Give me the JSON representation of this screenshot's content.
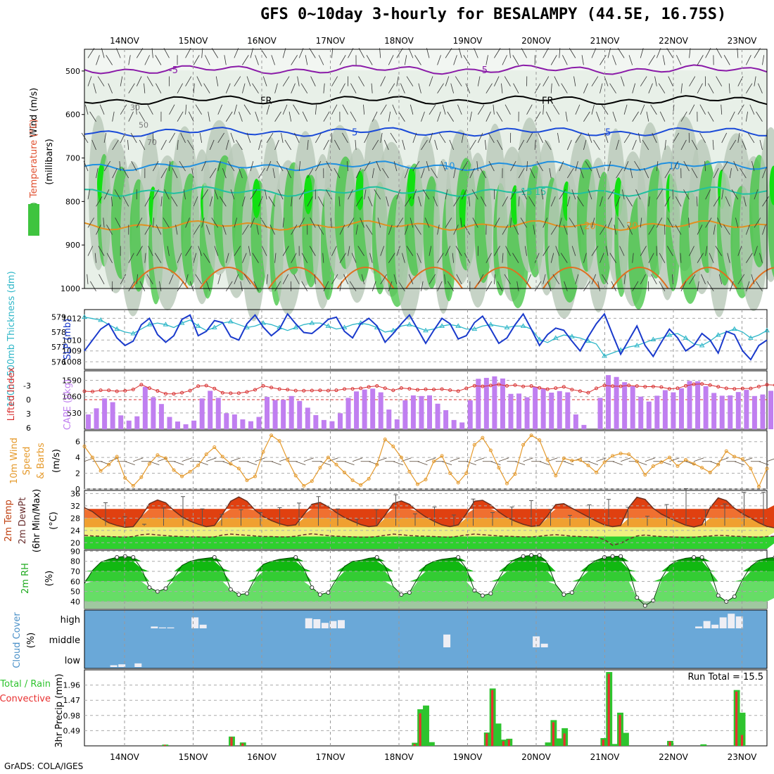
{
  "title": "GFS 0~10day 3-hourly for BESALAMPY (44.5E, 16.75S)",
  "credit": "GrADS: COLA/IGES",
  "dates": [
    "14NOV",
    "15NOV",
    "16NOV",
    "17NOV",
    "18NOV",
    "19NOV",
    "20NOV",
    "21NOV",
    "22NOV",
    "23NOV"
  ],
  "colors": {
    "rh_green": "#3fc43f",
    "rh_dark": "#1faa1f",
    "slp": "#1a3acc",
    "thick": "#2fb7c8",
    "cape": "#c07ff0",
    "li": "#d83030",
    "wind": "#e59a2c",
    "cloud_bg": "#6aa8d8",
    "precip_total": "#2ec42e",
    "precip_conv": "#e83030"
  },
  "chart_data": [
    {
      "panel": "upper_air",
      "type": "heatmap",
      "ylabel_parts": [
        "RH (%)",
        "Temperature (°C)",
        "Wind (m/s)"
      ],
      "yunit": "(millibars)",
      "yticks": [
        500,
        600,
        700,
        800,
        900,
        1000
      ],
      "ylim": [
        1000,
        450
      ],
      "isotherms": [
        {
          "label": "-5",
          "color": "#8a1aa8",
          "level": "490~505 mb"
        },
        {
          "label": "FR",
          "color": "#000000",
          "level": "565~575 mb"
        },
        {
          "label": "5",
          "color": "#1a4ad8",
          "level": "630~650 mb"
        },
        {
          "label": "10",
          "color": "#2090e0",
          "level": "705~730 mb"
        },
        {
          "label": "15",
          "color": "#20c0a0",
          "level": "765~790 mb"
        },
        {
          "label": "20",
          "color": "#e09020",
          "level": "840~870 mb"
        }
      ],
      "rh_labels": [
        "30",
        "50",
        "70"
      ]
    },
    {
      "panel": "slp_thickness",
      "type": "line",
      "left_label": "1000~500mb Thickness (dm)",
      "right_label": "SLP (mb)",
      "thick_ticks": [
        579,
        578,
        577,
        576
      ],
      "slp_ticks": [
        1012,
        1010,
        1009,
        1008
      ],
      "slp": [
        1009.0,
        1010.0,
        1011.0,
        1011.5,
        1010.2,
        1009.5,
        1009.9,
        1011.4,
        1012.0,
        1010.5,
        1009.8,
        1010.4,
        1011.9,
        1012.3,
        1010.4,
        1010.8,
        1011.8,
        1011.6,
        1010.3,
        1010.0,
        1011.5,
        1012.3,
        1011.2,
        1010.4,
        1011.0,
        1012.4,
        1011.5,
        1010.7,
        1010.6,
        1011.2,
        1011.9,
        1012.1,
        1010.8,
        1010.2,
        1011.5,
        1012.0,
        1011.3,
        1009.8,
        1010.6,
        1011.5,
        1012.3,
        1011.0,
        1009.7,
        1010.9,
        1012.0,
        1011.5,
        1010.1,
        1010.4,
        1011.6,
        1012.2,
        1011.0,
        1009.7,
        1010.2,
        1011.4,
        1012.4,
        1011.0,
        1009.5,
        1010.5,
        1011.1,
        1010.9,
        1009.9,
        1009.0,
        1010.3,
        1011.5,
        1012.4,
        1010.5,
        1008.7,
        1010.0,
        1011.3,
        1009.5,
        1008.5,
        1009.8,
        1011.0,
        1010.2,
        1009.0,
        1009.5,
        1010.6,
        1010.0,
        1008.8,
        1010.8,
        1010.5,
        1009.0,
        1008.2,
        1009.5,
        1010.0
      ],
      "thickness": [
        579.0,
        578.9,
        578.8,
        578.5,
        578.2,
        578.0,
        577.9,
        578.2,
        578.5,
        578.6,
        578.5,
        578.3,
        578.6,
        578.8,
        578.4,
        578.1,
        578.3,
        578.6,
        578.7,
        578.5,
        578.3,
        578.4,
        578.6,
        578.5,
        578.3,
        578.1,
        578.3,
        578.5,
        578.6,
        578.6,
        578.4,
        578.2,
        578.3,
        578.5,
        578.6,
        578.5,
        578.3,
        578.0,
        578.1,
        578.4,
        578.5,
        578.3,
        578.1,
        578.2,
        578.4,
        578.5,
        578.4,
        578.2,
        578.2,
        578.4,
        578.5,
        578.4,
        578.3,
        578.4,
        578.4,
        578.2,
        577.5,
        577.3,
        577.6,
        577.8,
        577.7,
        577.6,
        577.4,
        577.2,
        576.4,
        576.6,
        576.8,
        577.0,
        577.1,
        577.3,
        577.5,
        577.6,
        577.8,
        577.9,
        577.6,
        577.2,
        577.1,
        577.4,
        577.8,
        578.0,
        578.2,
        578.0,
        577.6,
        577.8,
        578.1
      ],
      "xlabel": ""
    },
    {
      "panel": "cape_li",
      "type": "bar",
      "left_label": "Lifted Index",
      "right_label": "CAPE (J/kg)",
      "li_ticks": [
        "-3",
        "0",
        "3",
        "6"
      ],
      "cape_ticks": [
        1590,
        1060,
        530
      ],
      "cape": [
        480,
        680,
        1000,
        880,
        450,
        280,
        420,
        1380,
        1040,
        820,
        400,
        250,
        160,
        280,
        1000,
        1250,
        1020,
        520,
        480,
        320,
        260,
        400,
        1050,
        950,
        960,
        1080,
        920,
        700,
        460,
        300,
        260,
        520,
        1020,
        1230,
        1290,
        1320,
        1200,
        640,
        320,
        940,
        1100,
        1080,
        1100,
        830,
        620,
        300,
        220,
        940,
        1640,
        1670,
        1720,
        1650,
        1150,
        1160,
        1040,
        1380,
        1320,
        1190,
        1240,
        1200,
        480,
        140,
        0,
        1020,
        1760,
        1700,
        1530,
        1400,
        1060,
        900,
        1090,
        1270,
        1200,
        1330,
        1570,
        1560,
        1400,
        1180,
        1090,
        1100,
        1210,
        1280,
        1080,
        1130,
        1250,
        1200
      ]
    },
    {
      "panel": "wind_10m",
      "type": "line",
      "ylabel": "10m Wind Speed & Barbs (m/s)",
      "yticks": [
        0,
        2,
        4,
        6
      ],
      "speed": [
        5.4,
        4.0,
        2.3,
        3.1,
        4.1,
        1.4,
        0.4,
        1.5,
        3.2,
        4.3,
        3.9,
        2.4,
        1.6,
        2.2,
        3.0,
        4.4,
        5.3,
        4.1,
        3.2,
        2.6,
        1.1,
        1.6,
        4.7,
        6.8,
        6.1,
        3.7,
        1.7,
        0.4,
        1.0,
        2.7,
        4.0,
        3.1,
        2.1,
        1.1,
        0.5,
        1.3,
        3.1,
        6.3,
        5.4,
        4.0,
        2.2,
        0.6,
        1.2,
        3.5,
        4.2,
        2.0,
        0.8,
        2.0,
        5.6,
        6.5,
        4.9,
        2.7,
        0.7,
        1.9,
        5.6,
        6.8,
        6.2,
        3.7,
        1.7,
        3.9,
        3.6,
        3.7,
        3.0,
        2.1,
        3.4,
        4.2,
        4.5,
        4.4,
        3.5,
        1.8,
        2.9,
        3.4,
        4.0,
        2.9,
        3.7,
        3.2,
        2.7,
        2.1,
        3.1,
        4.8,
        4.1,
        3.8,
        2.6,
        0.3,
        2.6
      ]
    },
    {
      "panel": "temp_2m",
      "type": "area",
      "ylabel": "2m Temp 2m DewPt (6hr Min/Max) (°C)",
      "yticks": [
        20,
        24,
        28,
        32,
        36
      ],
      "ylim": [
        18,
        37
      ],
      "temp": [
        31.4,
        30.1,
        28.0,
        26.5,
        25.6,
        25.0,
        25.2,
        28.5,
        32.7,
        33.9,
        33.0,
        30.5,
        28.4,
        27.0,
        26.0,
        25.2,
        25.6,
        29.3,
        33.5,
        34.9,
        33.5,
        30.6,
        28.5,
        27.2,
        26.2,
        25.5,
        25.8,
        29.2,
        32.5,
        33.1,
        31.7,
        29.8,
        28.2,
        27.0,
        25.9,
        25.2,
        25.5,
        29.0,
        32.8,
        33.6,
        32.5,
        30.2,
        28.4,
        27.0,
        25.8,
        25.2,
        25.8,
        29.4,
        33.5,
        33.8,
        32.3,
        30.0,
        28.2,
        27.0,
        26.0,
        25.3,
        25.6,
        28.8,
        32.4,
        32.7,
        31.2,
        29.8,
        28.4,
        27.0,
        25.8,
        25.2,
        25.6,
        31.5,
        34.8,
        34.1,
        31.2,
        29.3,
        28.0,
        26.8,
        25.7,
        25.1,
        25.8,
        31.4,
        34.6,
        33.7,
        31.2,
        29.4,
        28.0,
        26.5,
        25.3,
        24.8,
        33.7
      ],
      "dewpt": [
        22.4,
        22.2,
        22.1,
        22.0,
        21.9,
        21.8,
        22.0,
        22.6,
        22.8,
        22.5,
        22.3,
        22.1,
        22.0,
        21.9,
        21.9,
        21.8,
        21.9,
        22.5,
        22.8,
        22.6,
        22.4,
        22.2,
        22.0,
        22.0,
        21.9,
        21.9,
        22.1,
        22.6,
        22.9,
        22.6,
        22.3,
        22.1,
        22.0,
        21.9,
        21.8,
        21.8,
        22.0,
        22.4,
        22.8,
        22.6,
        22.3,
        22.2,
        22.1,
        22.0,
        21.9,
        21.8,
        22.1,
        22.5,
        22.8,
        22.6,
        22.4,
        22.2,
        22.1,
        22.0,
        21.9,
        21.9,
        22.1,
        22.4,
        22.6,
        22.4,
        22.1,
        22.0,
        21.9,
        21.8,
        21.0,
        19.2,
        19.8,
        21.2,
        22.2,
        22.5,
        22.2,
        22.0,
        21.9,
        21.8,
        21.7,
        21.8,
        22.0,
        22.2,
        22.4,
        22.3,
        22.1,
        22.0,
        21.9,
        21.8,
        22.0,
        22.1,
        22.2
      ],
      "max6h": [
        33.0,
        28.4,
        26.0,
        31.3,
        35.0,
        31.0,
        29.2,
        30.7,
        29.8,
        31.4,
        32.9,
        35.0,
        31.0,
        27.6,
        30.8,
        35.6,
        29.4,
        31.6,
        29.0,
        34.2,
        29.8,
        31.6,
        33.7,
        30.8,
        28.9,
        32.3,
        34.1,
        31.5,
        28.6,
        32.4,
        37.6,
        30.7,
        32.6,
        36.4,
        36.4
      ]
    },
    {
      "panel": "rh_2m",
      "type": "area",
      "ylabel": "2m RH (%)",
      "yticks": [
        40,
        50,
        60,
        70,
        80,
        90
      ],
      "ylim": [
        33,
        91
      ],
      "rh": [
        58,
        71,
        79,
        82,
        84,
        85,
        84,
        73,
        54,
        50,
        53,
        64,
        76,
        80,
        82,
        83,
        84,
        73,
        52,
        47,
        48,
        63,
        77,
        80,
        82,
        83,
        84,
        73,
        54,
        47,
        49,
        62,
        75,
        80,
        81,
        83,
        84,
        75,
        55,
        47,
        49,
        63,
        76,
        80,
        82,
        83,
        84,
        73,
        51,
        46,
        48,
        63,
        76,
        82,
        85,
        86,
        86,
        78,
        57,
        47,
        49,
        63,
        76,
        81,
        84,
        85,
        85,
        72,
        44,
        36,
        41,
        63,
        76,
        81,
        83,
        84,
        84,
        71,
        46,
        40,
        45,
        62,
        75,
        81,
        83,
        84,
        48
      ]
    },
    {
      "panel": "cloud",
      "type": "bar",
      "ylabel": "Cloud Cover (%)",
      "levels": [
        "high",
        "middle",
        "low"
      ],
      "high_pct": [
        0,
        0,
        0,
        0,
        0,
        0,
        0,
        0,
        10,
        5,
        5,
        0,
        0,
        60,
        20,
        0,
        0,
        0,
        0,
        0,
        0,
        0,
        0,
        0,
        0,
        0,
        0,
        55,
        50,
        30,
        40,
        45,
        0,
        0,
        0,
        0,
        0,
        0,
        0,
        0,
        0,
        0,
        0,
        0,
        0,
        0,
        0,
        0,
        0,
        0,
        0,
        0,
        0,
        0,
        0,
        0,
        0,
        0,
        0,
        0,
        0,
        0,
        0,
        0,
        0,
        0,
        0,
        0,
        0,
        0,
        0,
        0,
        0,
        0,
        0,
        10,
        40,
        20,
        60,
        80,
        65,
        0,
        0,
        0,
        0
      ],
      "middle_pct": [
        0,
        0,
        0,
        0,
        0,
        0,
        0,
        0,
        0,
        0,
        0,
        0,
        0,
        0,
        0,
        0,
        0,
        0,
        0,
        0,
        0,
        0,
        0,
        0,
        0,
        0,
        0,
        0,
        0,
        0,
        0,
        0,
        0,
        0,
        0,
        0,
        0,
        0,
        0,
        0,
        0,
        0,
        0,
        0,
        70,
        0,
        0,
        0,
        0,
        0,
        0,
        0,
        0,
        0,
        0,
        60,
        20,
        0,
        0,
        0,
        0,
        0,
        0,
        0,
        0,
        0,
        0,
        0,
        0,
        0,
        0,
        0,
        0,
        0,
        0,
        0,
        0,
        0,
        0,
        0,
        0,
        0,
        0,
        0,
        0
      ],
      "low_pct": [
        0,
        0,
        0,
        10,
        15,
        0,
        20,
        0,
        0,
        0,
        0,
        0,
        0,
        0,
        0,
        0,
        0,
        0,
        0,
        0,
        0,
        0,
        0,
        0,
        0,
        0,
        0,
        0,
        0,
        0,
        0,
        0,
        0,
        0,
        0,
        0,
        0,
        0,
        0,
        0,
        0,
        0,
        0,
        0,
        0,
        0,
        0,
        0,
        0,
        0,
        0,
        0,
        0,
        0,
        0,
        0,
        0,
        0,
        0,
        0,
        0,
        0,
        0,
        0,
        0,
        0,
        0,
        0,
        0,
        0,
        0,
        0,
        0,
        0,
        0,
        0,
        0,
        0,
        0,
        0,
        0,
        0,
        0,
        0,
        0
      ]
    },
    {
      "panel": "precip",
      "type": "bar",
      "ylabel": "3hr Precip (mm)",
      "left_label": "Total / Rain",
      "left_label2": "Convective",
      "run_total": "Run Total = 15.5",
      "yticks": [
        0.49,
        0.98,
        1.47,
        1.96
      ],
      "ylim": [
        0,
        2.45
      ],
      "total": [
        0,
        0,
        0,
        0,
        0,
        0,
        0,
        0,
        0,
        0,
        0,
        0,
        0,
        0,
        0.04,
        0,
        0,
        0,
        0,
        0,
        0,
        0,
        0,
        0,
        0,
        0,
        0.3,
        0,
        0.11,
        0,
        0,
        0,
        0,
        0,
        0,
        0,
        0,
        0,
        0,
        0,
        0,
        0,
        0,
        0,
        0,
        0,
        0,
        0,
        0,
        0,
        0,
        0,
        0,
        0,
        0,
        0,
        0,
        0,
        0,
        0.1,
        1.18,
        1.3,
        0.12,
        0,
        0,
        0,
        0,
        0,
        0,
        0,
        0,
        0,
        0.43,
        1.85,
        0.72,
        0.2,
        0.23,
        0,
        0,
        0,
        0,
        0,
        0,
        0.11,
        0.83,
        0.24,
        0.57,
        0,
        0,
        0,
        0,
        0,
        0,
        0.25,
        2.38,
        0.06,
        1.07,
        0.42,
        0,
        0,
        0,
        0,
        0,
        0,
        0,
        0.16,
        0,
        0,
        0,
        0,
        0,
        0.05,
        0,
        0,
        0,
        0,
        0,
        1.8,
        1.07,
        0,
        0,
        0,
        0
      ],
      "convective": [
        0,
        0,
        0,
        0,
        0,
        0,
        0,
        0,
        0,
        0,
        0,
        0,
        0,
        0,
        0.03,
        0,
        0,
        0,
        0,
        0,
        0,
        0,
        0,
        0,
        0,
        0,
        0.28,
        0,
        0.08,
        0,
        0,
        0,
        0,
        0,
        0,
        0,
        0,
        0,
        0,
        0,
        0,
        0,
        0,
        0,
        0,
        0,
        0,
        0,
        0,
        0,
        0,
        0,
        0,
        0,
        0,
        0,
        0,
        0,
        0,
        0.06,
        1.05,
        0,
        0,
        0,
        0,
        0,
        0,
        0,
        0,
        0,
        0,
        0,
        0.4,
        1.8,
        0,
        0.15,
        0.2,
        0,
        0,
        0,
        0,
        0,
        0,
        0,
        0.76,
        0,
        0.4,
        0,
        0,
        0,
        0,
        0,
        0,
        0.2,
        2.32,
        0,
        1.0,
        0,
        0,
        0,
        0,
        0,
        0,
        0,
        0,
        0.14,
        0,
        0,
        0,
        0,
        0,
        0,
        0,
        0,
        0,
        0,
        0,
        1.75,
        0.35,
        0,
        0,
        0,
        0
      ]
    }
  ]
}
